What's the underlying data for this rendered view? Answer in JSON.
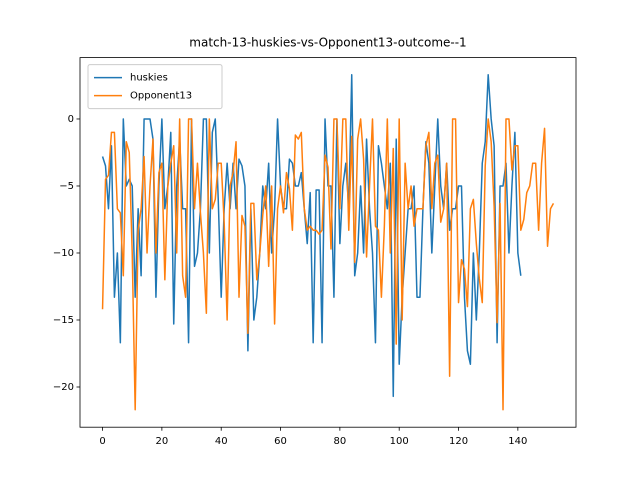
{
  "chart_data": {
    "type": "line",
    "title": "match-13-huskies-vs-Opponent13-outcome--1",
    "x": [
      0,
      1,
      2,
      3,
      4,
      5,
      6,
      7,
      8,
      9,
      10,
      11,
      12,
      13,
      14,
      15,
      16,
      17,
      18,
      19,
      20,
      21,
      22,
      23,
      24,
      25,
      26,
      27,
      28,
      29,
      30,
      31,
      32,
      33,
      34,
      35,
      36,
      37,
      38,
      39,
      40,
      41,
      42,
      43,
      44,
      45,
      46,
      47,
      48,
      49,
      50,
      51,
      52,
      53,
      54,
      55,
      56,
      57,
      58,
      59,
      60,
      61,
      62,
      63,
      64,
      65,
      66,
      67,
      68,
      69,
      70,
      71,
      72,
      73,
      74,
      75,
      76,
      77,
      78,
      79,
      80,
      81,
      82,
      83,
      84,
      85,
      86,
      87,
      88,
      89,
      90,
      91,
      92,
      93,
      94,
      95,
      96,
      97,
      98,
      99,
      100,
      101,
      102,
      103,
      104,
      105,
      106,
      107,
      108,
      109,
      110,
      111,
      112,
      113,
      114,
      115,
      116,
      117,
      118,
      119,
      120,
      121,
      122,
      123,
      124,
      125,
      126,
      127,
      128,
      129,
      130,
      131,
      132,
      133,
      134,
      135,
      136,
      137,
      138,
      139,
      140,
      141,
      142,
      143,
      144,
      145,
      146,
      147,
      148,
      149,
      150,
      151,
      152
    ],
    "series": [
      {
        "name": "huskies",
        "color": "#1f77b4",
        "values": [
          -2.8,
          -3.5,
          -6.7,
          -2,
          -13.3,
          -10,
          -16.7,
          0,
          -5,
          -4.5,
          -5,
          -13.3,
          -6.7,
          -11.7,
          0,
          0,
          0,
          -1.5,
          -13.3,
          -5,
          0,
          -6.7,
          -5,
          -1,
          -15.3,
          -5,
          -1.5,
          -6.7,
          -6.7,
          -16.7,
          0,
          -11,
          -10,
          -6.7,
          0,
          0,
          -10,
          -1,
          0,
          -6,
          -13.3,
          -6.7,
          -3.3,
          -6.7,
          -3.3,
          -6.7,
          -3,
          -3.5,
          -5,
          -17.3,
          -6.7,
          -15,
          -13.3,
          -10,
          -5,
          -6.7,
          -3.3,
          -10,
          -6.7,
          0,
          -5,
          -6.7,
          -6.7,
          -3,
          -3.3,
          -5,
          -5,
          -4,
          -6.7,
          -9.3,
          -5.5,
          -16.7,
          -5.3,
          -5.3,
          -16.7,
          0,
          -5,
          -5,
          -13.3,
          0,
          -9.3,
          -5,
          -3.3,
          -6.7,
          3.3,
          -11.7,
          -10,
          -5,
          -10,
          -1.5,
          -6.7,
          -10,
          -16.7,
          -2,
          -3.3,
          -5,
          -6.7,
          -3.3,
          -20.7,
          -1.5,
          -18.3,
          -13.3,
          -10,
          -6.7,
          -6.7,
          -5,
          -13.3,
          -13.3,
          -6.7,
          -1.7,
          -3.3,
          -10,
          -5,
          0,
          -5,
          -6.7,
          -3.3,
          -8.3,
          -6.7,
          -6.7,
          -5,
          -5,
          -13.3,
          -17.3,
          -18.3,
          -10,
          -15,
          -10,
          -3.3,
          -1.7,
          3.3,
          0,
          -2,
          -16.7,
          -5,
          -5,
          -3.3,
          -10,
          -5,
          -1,
          -10,
          -11.7,
          null,
          null,
          null,
          null,
          null,
          null,
          null,
          null,
          null,
          null,
          null
        ]
      },
      {
        "name": "Opponent13",
        "color": "#ff7f0e",
        "values": [
          -14.2,
          -4.5,
          -4.2,
          -1,
          -1,
          -6.7,
          -7,
          -11.7,
          -1.7,
          -2.5,
          -10,
          -21.7,
          -8.3,
          -6.7,
          -2.8,
          -10,
          -5,
          -1.5,
          -10,
          -4,
          -3.3,
          -12,
          -5,
          -3.3,
          -2,
          -10,
          0,
          -11.7,
          -13.3,
          0,
          0,
          -6.7,
          -3.3,
          -7,
          -10,
          -14.5,
          0,
          -6.7,
          -6,
          -3.3,
          -3.3,
          -7.7,
          -15,
          -5,
          -4,
          -1.7,
          -13.3,
          -7.2,
          -8,
          -16,
          -6.3,
          -6.3,
          -12,
          -10,
          -7.2,
          -5,
          -11,
          -5,
          -15.3,
          -6.7,
          -5,
          -7,
          -4,
          -5.2,
          -8.3,
          -1.2,
          -1.5,
          -1,
          -6.7,
          -8.3,
          -8,
          -8.3,
          -8.3,
          -8.6,
          -8.3,
          -2.7,
          -3.6,
          -9.7,
          0,
          0,
          -6.7,
          0,
          0,
          -8.3,
          -1.3,
          -10.7,
          -1.5,
          0,
          -3,
          -10.3,
          -5,
          0,
          -8,
          -8.3,
          -13.3,
          -8,
          0,
          -10,
          -2.2,
          -16.8,
          0,
          -15,
          -3.3,
          -6.7,
          -5,
          -8,
          -6.7,
          -6.7,
          -6.7,
          -2,
          -1,
          -6.7,
          -3.3,
          -2.7,
          -7.7,
          -6.7,
          -3.3,
          -19.2,
          0,
          0,
          -13.7,
          -10.5,
          -11.2,
          -14,
          -6.7,
          -6,
          -9.3,
          -11.9,
          -13.7,
          -3.5,
          0,
          -1.7,
          -6.5,
          -15.2,
          -6.3,
          -21.7,
          0,
          0,
          -3.8,
          -2,
          -2,
          -8.3,
          -7.5,
          -5.5,
          -5,
          -3.3,
          -3.3,
          -8.3,
          -3.3,
          -0.7,
          -9.5,
          -6.7,
          -6.3
        ]
      }
    ],
    "xlim": [
      -7.6,
      159.6
    ],
    "ylim": [
      -23.0,
      4.58
    ],
    "xticks": [
      0,
      20,
      40,
      60,
      80,
      100,
      120,
      140
    ],
    "yticks": [
      {
        "value": -20,
        "label": "−20"
      },
      {
        "value": -15,
        "label": "−15"
      },
      {
        "value": -10,
        "label": "−10"
      },
      {
        "value": -5,
        "label": "−5"
      },
      0
    ],
    "legend": "upper left"
  }
}
